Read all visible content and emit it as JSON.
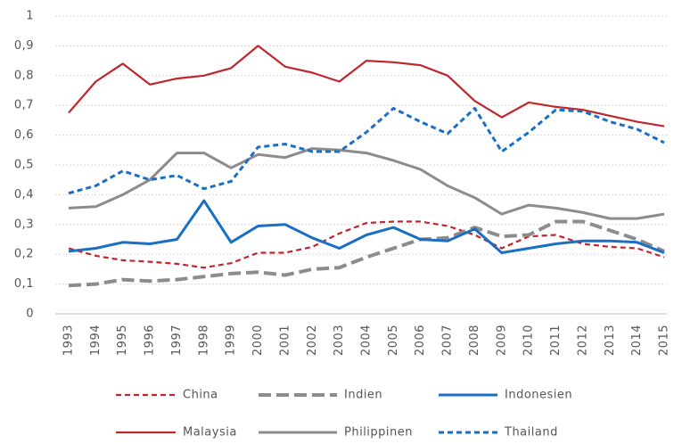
{
  "chart_data": {
    "type": "line",
    "categories": [
      "1993",
      "1994",
      "1995",
      "1996",
      "1997",
      "1998",
      "1999",
      "2000",
      "2001",
      "2002",
      "2003",
      "2004",
      "2005",
      "2006",
      "2007",
      "2008",
      "2009",
      "2010",
      "2011",
      "2012",
      "2013",
      "2014",
      "2015"
    ],
    "ylim": [
      0,
      1
    ],
    "yticks": [
      0,
      {
        "value": 0.1,
        "label": "0,1"
      },
      {
        "value": 0.2,
        "label": "0,2"
      },
      {
        "value": 0.3,
        "label": "0,3"
      },
      {
        "value": 0.4,
        "label": "0,4"
      },
      {
        "value": 0.5,
        "label": "0,5"
      },
      {
        "value": 0.6,
        "label": "0,6"
      },
      {
        "value": 0.7,
        "label": "0,7"
      },
      {
        "value": 0.8,
        "label": "0,8"
      },
      {
        "value": 0.9,
        "label": "0,9"
      },
      1
    ],
    "grid": true,
    "legend": "bottom",
    "series": [
      {
        "name": "China",
        "color": "#c0272d",
        "dash": "short",
        "values": [
          0.22,
          0.195,
          0.18,
          0.175,
          0.168,
          0.155,
          0.17,
          0.205,
          0.205,
          0.225,
          0.27,
          0.305,
          0.31,
          0.31,
          0.295,
          0.265,
          0.22,
          0.26,
          0.265,
          0.235,
          0.225,
          0.22,
          0.19
        ]
      },
      {
        "name": "Indien",
        "color": "#8c8c8c",
        "dash": "long",
        "values": [
          0.095,
          0.1,
          0.115,
          0.11,
          0.115,
          0.125,
          0.135,
          0.14,
          0.13,
          0.15,
          0.155,
          0.19,
          0.22,
          0.25,
          0.255,
          0.29,
          0.26,
          0.265,
          0.31,
          0.31,
          0.28,
          0.25,
          0.21
        ]
      },
      {
        "name": "Indonesien",
        "color": "#1a6fc4",
        "dash": "solid",
        "values": [
          0.21,
          0.22,
          0.24,
          0.235,
          0.25,
          0.38,
          0.24,
          0.295,
          0.3,
          0.255,
          0.22,
          0.265,
          0.29,
          0.25,
          0.245,
          0.285,
          0.205,
          0.22,
          0.235,
          0.245,
          0.245,
          0.24,
          0.205
        ]
      },
      {
        "name": "Malaysia",
        "color": "#c0272d",
        "dash": "solid",
        "values": [
          0.675,
          0.78,
          0.84,
          0.77,
          0.79,
          0.8,
          0.825,
          0.9,
          0.83,
          0.81,
          0.78,
          0.85,
          0.845,
          0.835,
          0.8,
          0.715,
          0.66,
          0.71,
          0.695,
          0.685,
          0.665,
          0.645,
          0.63
        ]
      },
      {
        "name": "Philippinen",
        "color": "#8c8c8c",
        "dash": "solid",
        "values": [
          0.355,
          0.36,
          0.4,
          0.45,
          0.54,
          0.54,
          0.49,
          0.535,
          0.525,
          0.555,
          0.55,
          0.54,
          0.515,
          0.485,
          0.43,
          0.39,
          0.335,
          0.365,
          0.355,
          0.34,
          0.32,
          0.32,
          0.335
        ]
      },
      {
        "name": "Thailand",
        "color": "#1a6fc4",
        "dash": "short",
        "values": [
          0.405,
          0.43,
          0.48,
          0.45,
          0.465,
          0.42,
          0.445,
          0.56,
          0.57,
          0.545,
          0.545,
          0.61,
          0.69,
          0.645,
          0.605,
          0.69,
          0.545,
          0.61,
          0.685,
          0.68,
          0.645,
          0.62,
          0.575
        ]
      }
    ]
  }
}
